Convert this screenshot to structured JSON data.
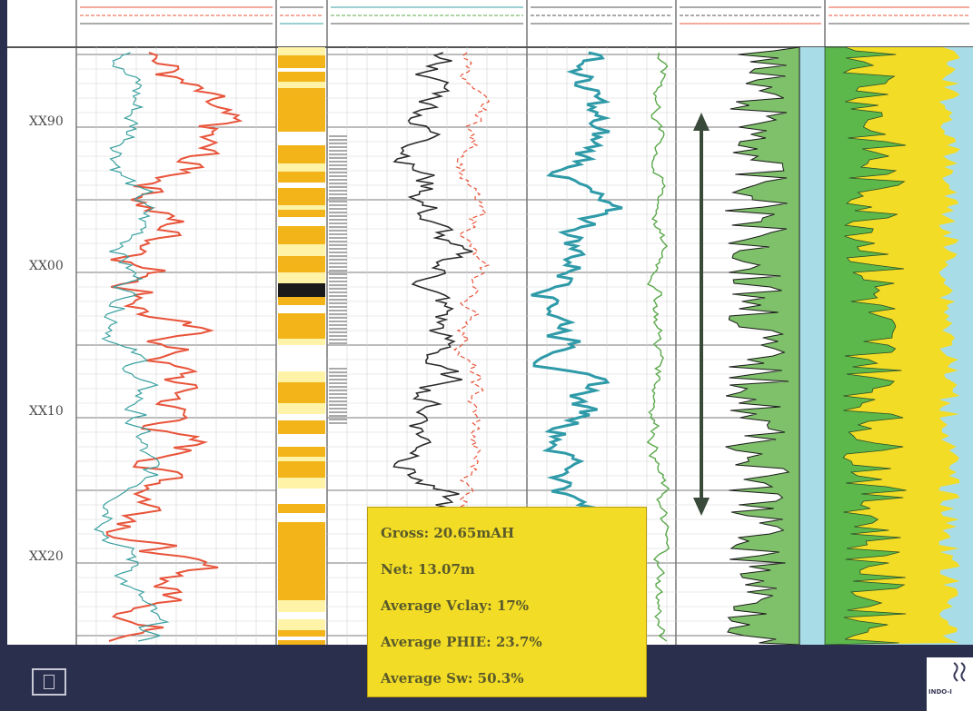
{
  "chart_data": {
    "type": "line",
    "title": "",
    "depth_axis": {
      "tick_labels": [
        "XX90",
        "XX00",
        "XX10",
        "XX20"
      ],
      "direction": "downwards"
    },
    "tracks": [
      {
        "name": "gamma-track",
        "series": [
          {
            "color": "#e8543a"
          },
          {
            "color": "#3aa0a0"
          }
        ]
      },
      {
        "name": "lithology-color-track",
        "colors": [
          "#f2b418",
          "#fff3a8",
          "#ffffff",
          "#1a1a1a"
        ]
      },
      {
        "name": "porosity-track",
        "series": [
          {
            "color": "#2a2a2a"
          },
          {
            "color": "#e8543a",
            "dashed": true
          },
          {
            "color": "#3aa0a0",
            "dashed": true
          }
        ]
      },
      {
        "name": "resistivity-track",
        "series": [
          {
            "color": "#2f9aa8"
          },
          {
            "color": "#5aa84a"
          }
        ]
      },
      {
        "name": "saturation-track",
        "fill": "#d9ecc2",
        "shade": "#7fc06a",
        "reservoir_arrow": true
      },
      {
        "name": "volumetric-track",
        "fills": [
          "#5cb84a",
          "#f2dc26",
          "#a8dde8"
        ]
      }
    ]
  },
  "summary": {
    "gross": "Gross: 20.65mAH",
    "net": "Net: 13.07m",
    "vclay": "Average Vclay: 17%",
    "phie": "Average PHIE: 23.7%",
    "sw": "Average Sw: 50.3%"
  },
  "logo": {
    "text": "INDO-I"
  },
  "colors": {
    "background": "#2b2f4e",
    "summary_fill": "#f2dc26"
  }
}
